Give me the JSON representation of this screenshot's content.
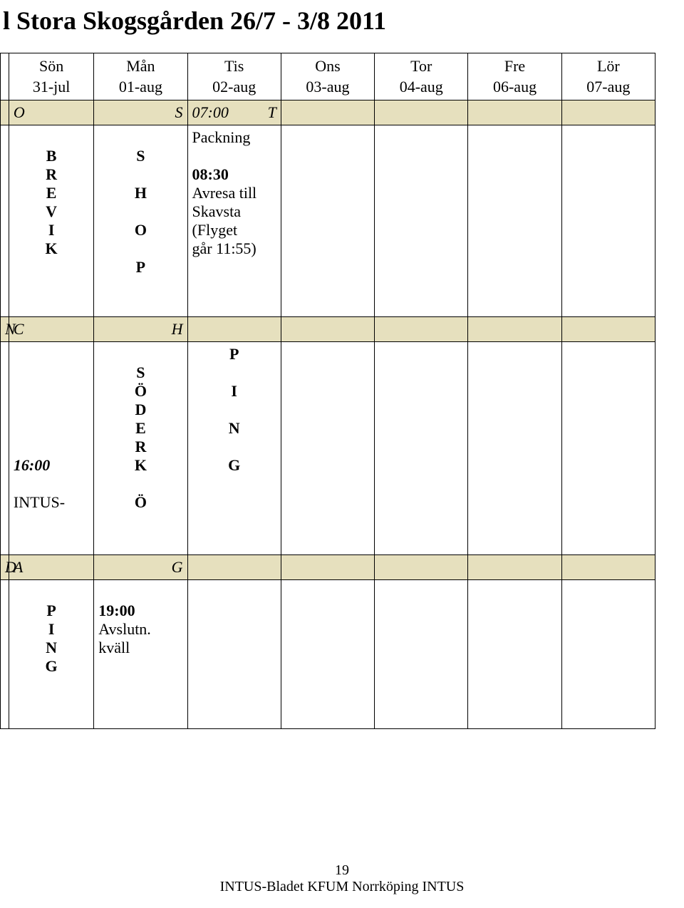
{
  "title": "l Stora Skogsgården 26/7 - 3/8  2011",
  "header": {
    "days": [
      {
        "name": "Sön",
        "date": "31-jul"
      },
      {
        "name": "Mån",
        "date": "01-aug"
      },
      {
        "name": "Tis",
        "date": "02-aug"
      },
      {
        "name": "Ons",
        "date": "03-aug"
      },
      {
        "name": "Tor",
        "date": "04-aug"
      },
      {
        "name": "Fre",
        "date": "06-aug"
      },
      {
        "name": "Lör",
        "date": "07-aug"
      }
    ]
  },
  "band1": {
    "c2": "O",
    "c3": "S",
    "c4a": "07:00",
    "c4b": "T"
  },
  "block1": {
    "col2": [
      "B",
      "R",
      "E",
      "V",
      "I",
      "K"
    ],
    "col3": [
      "S",
      "",
      "H",
      "",
      "O",
      "",
      "P"
    ],
    "col4": [
      "Packning",
      "",
      "08:30",
      "Avresa till",
      "Skavsta",
      "(Flyget",
      "går 11:55)"
    ]
  },
  "band2": {
    "c1": "N",
    "c2": "C",
    "c3": "H"
  },
  "block2": {
    "col1_time": "16:00",
    "col1_extra": "INTUS-",
    "col2a": [
      "",
      "S",
      "Ö",
      "D",
      "E",
      "R",
      "K"
    ],
    "col2b": "Ö",
    "col3": [
      "P",
      "",
      "I",
      "",
      "N",
      "",
      "G"
    ]
  },
  "band3": {
    "c1": "D",
    "c2": "A",
    "c3": "G"
  },
  "block3": {
    "col2": [
      "P",
      "I",
      "N",
      "G"
    ],
    "col3": [
      "19:00",
      "Avslutn.",
      "kväll"
    ]
  },
  "footer": {
    "page_num": "19",
    "text": "INTUS-Bladet KFUM Norrköping INTUS"
  },
  "colors": {
    "band_bg": "#e6e0be",
    "border": "#000000",
    "bg": "#ffffff",
    "text": "#000000"
  }
}
